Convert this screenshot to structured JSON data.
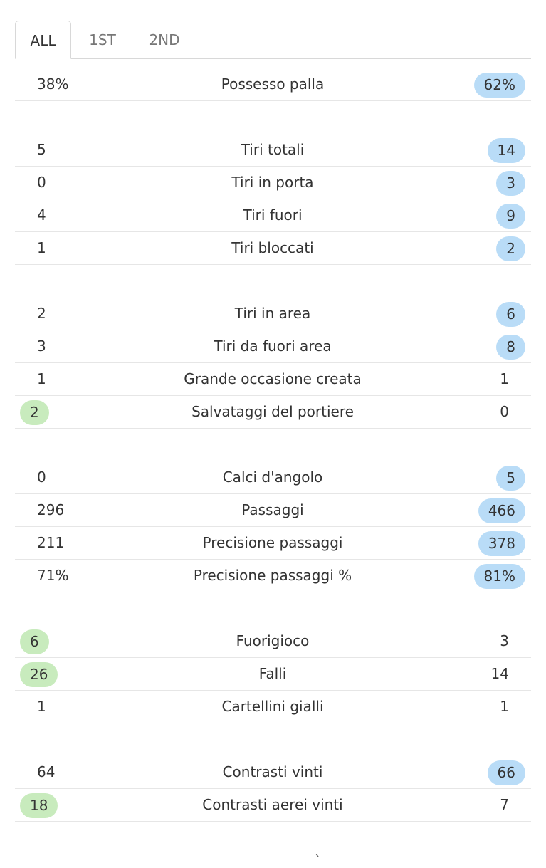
{
  "tabs": [
    {
      "label": "ALL",
      "active": true
    },
    {
      "label": "1ST",
      "active": false
    },
    {
      "label": "2ND",
      "active": false
    }
  ],
  "colors": {
    "home_highlight": "#c8ebbd",
    "away_highlight": "#b9dcf7",
    "divider": "#e6e6e6"
  },
  "groups": [
    [
      {
        "label": "Possesso palla",
        "home": "38%",
        "away": "62%",
        "leader": "away"
      }
    ],
    [
      {
        "label": "Tiri totali",
        "home": "5",
        "away": "14",
        "leader": "away"
      },
      {
        "label": "Tiri in porta",
        "home": "0",
        "away": "3",
        "leader": "away"
      },
      {
        "label": "Tiri fuori",
        "home": "4",
        "away": "9",
        "leader": "away"
      },
      {
        "label": "Tiri bloccati",
        "home": "1",
        "away": "2",
        "leader": "away"
      }
    ],
    [
      {
        "label": "Tiri in area",
        "home": "2",
        "away": "6",
        "leader": "away"
      },
      {
        "label": "Tiri da fuori area",
        "home": "3",
        "away": "8",
        "leader": "away"
      },
      {
        "label": "Grande occasione creata",
        "home": "1",
        "away": "1",
        "leader": "none"
      },
      {
        "label": "Salvataggi del portiere",
        "home": "2",
        "away": "0",
        "leader": "home"
      }
    ],
    [
      {
        "label": "Calci d'angolo",
        "home": "0",
        "away": "5",
        "leader": "away"
      },
      {
        "label": "Passaggi",
        "home": "296",
        "away": "466",
        "leader": "away"
      },
      {
        "label": "Precisione passaggi",
        "home": "211",
        "away": "378",
        "leader": "away"
      },
      {
        "label": "Precisione passaggi %",
        "home": "71%",
        "away": "81%",
        "leader": "away"
      }
    ],
    [
      {
        "label": "Fuorigioco",
        "home": "6",
        "away": "3",
        "leader": "home"
      },
      {
        "label": "Falli",
        "home": "26",
        "away": "14",
        "leader": "home"
      },
      {
        "label": "Cartellini gialli",
        "home": "1",
        "away": "1",
        "leader": "none"
      }
    ],
    [
      {
        "label": "Contrasti vinti",
        "home": "64",
        "away": "66",
        "leader": "away"
      },
      {
        "label": "Contrasti aerei vinti",
        "home": "18",
        "away": "7",
        "leader": "home"
      }
    ]
  ],
  "bottom_glyph": "`"
}
